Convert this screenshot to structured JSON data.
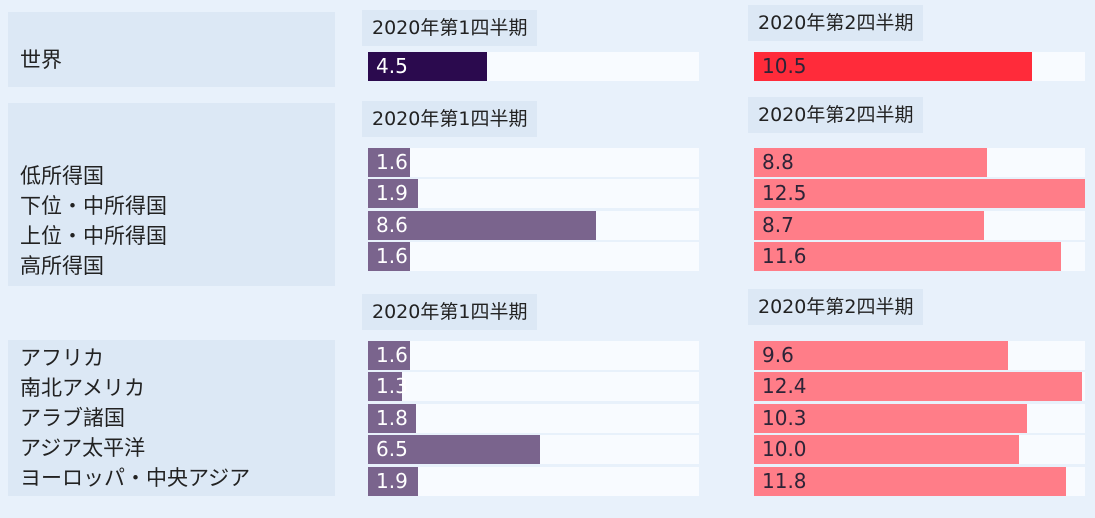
{
  "chart_data": {
    "type": "bar",
    "orientation": "horizontal",
    "xlim": [
      0,
      12.5
    ],
    "periods": [
      "2020年第1四半期",
      "2020年第2四半期"
    ],
    "groups": [
      {
        "categories": [
          "世界"
        ],
        "series": [
          {
            "values": [
              4.5
            ]
          },
          {
            "values": [
              10.5
            ]
          }
        ]
      },
      {
        "categories": [
          "低所得国",
          "下位・中所得国",
          "上位・中所得国",
          "高所得国"
        ],
        "series": [
          {
            "values": [
              1.6,
              1.9,
              8.6,
              1.6
            ]
          },
          {
            "values": [
              8.8,
              12.5,
              8.7,
              11.6
            ]
          }
        ]
      },
      {
        "categories": [
          "アフリカ",
          "南北アメリカ",
          "アラブ諸国",
          "アジア太平洋",
          "ヨーロッパ・中央アジア"
        ],
        "series": [
          {
            "values": [
              1.6,
              1.3,
              1.8,
              6.5,
              1.9
            ]
          },
          {
            "values": [
              9.6,
              12.4,
              10.3,
              10.0,
              11.8
            ]
          }
        ]
      }
    ],
    "colors": {
      "q1_world": "#2b0a4e",
      "q1_group": "#7a648d",
      "q2_world": "#ff2b3a",
      "q2_group": "#ff7d88"
    }
  }
}
